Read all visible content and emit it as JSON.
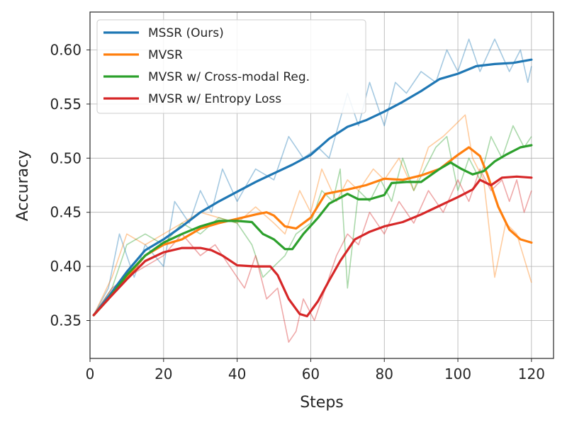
{
  "chart_data": {
    "type": "line",
    "title": "",
    "xlabel": "Steps",
    "ylabel": "Accuracy",
    "xlim": [
      0,
      126
    ],
    "ylim": [
      0.315,
      0.635
    ],
    "xticks": [
      0,
      20,
      40,
      60,
      80,
      100,
      120
    ],
    "yticks": [
      0.35,
      0.4,
      0.45,
      0.5,
      0.55,
      0.6
    ],
    "ytick_labels": [
      "0.35",
      "0.40",
      "0.45",
      "0.50",
      "0.55",
      "0.60"
    ],
    "grid": true,
    "legend_position": "upper-left",
    "series": [
      {
        "name": "MSSR (Ours)",
        "color": "#1f77b4",
        "smoothed": [
          [
            1,
            0.355
          ],
          [
            5,
            0.372
          ],
          [
            10,
            0.395
          ],
          [
            15,
            0.415
          ],
          [
            20,
            0.425
          ],
          [
            25,
            0.437
          ],
          [
            30,
            0.45
          ],
          [
            35,
            0.46
          ],
          [
            40,
            0.469
          ],
          [
            45,
            0.478
          ],
          [
            50,
            0.486
          ],
          [
            55,
            0.494
          ],
          [
            60,
            0.503
          ],
          [
            65,
            0.518
          ],
          [
            70,
            0.529
          ],
          [
            75,
            0.535
          ],
          [
            80,
            0.543
          ],
          [
            85,
            0.552
          ],
          [
            90,
            0.562
          ],
          [
            95,
            0.573
          ],
          [
            100,
            0.578
          ],
          [
            105,
            0.585
          ],
          [
            110,
            0.587
          ],
          [
            115,
            0.588
          ],
          [
            120,
            0.591
          ]
        ],
        "raw": [
          [
            1,
            0.355
          ],
          [
            5,
            0.38
          ],
          [
            8,
            0.43
          ],
          [
            12,
            0.39
          ],
          [
            15,
            0.42
          ],
          [
            20,
            0.4
          ],
          [
            23,
            0.46
          ],
          [
            27,
            0.44
          ],
          [
            30,
            0.47
          ],
          [
            33,
            0.45
          ],
          [
            36,
            0.49
          ],
          [
            40,
            0.46
          ],
          [
            45,
            0.49
          ],
          [
            50,
            0.48
          ],
          [
            54,
            0.52
          ],
          [
            58,
            0.5
          ],
          [
            62,
            0.51
          ],
          [
            65,
            0.5
          ],
          [
            70,
            0.56
          ],
          [
            73,
            0.53
          ],
          [
            76,
            0.57
          ],
          [
            80,
            0.53
          ],
          [
            83,
            0.57
          ],
          [
            86,
            0.56
          ],
          [
            90,
            0.58
          ],
          [
            94,
            0.57
          ],
          [
            97,
            0.6
          ],
          [
            100,
            0.58
          ],
          [
            103,
            0.61
          ],
          [
            106,
            0.58
          ],
          [
            110,
            0.61
          ],
          [
            114,
            0.58
          ],
          [
            117,
            0.6
          ],
          [
            119,
            0.57
          ],
          [
            120,
            0.585
          ]
        ]
      },
      {
        "name": "MVSR",
        "color": "#ff7f0e",
        "smoothed": [
          [
            1,
            0.355
          ],
          [
            5,
            0.37
          ],
          [
            10,
            0.39
          ],
          [
            15,
            0.41
          ],
          [
            20,
            0.42
          ],
          [
            25,
            0.425
          ],
          [
            30,
            0.435
          ],
          [
            35,
            0.44
          ],
          [
            40,
            0.444
          ],
          [
            45,
            0.448
          ],
          [
            48,
            0.45
          ],
          [
            50,
            0.447
          ],
          [
            53,
            0.437
          ],
          [
            56,
            0.435
          ],
          [
            60,
            0.445
          ],
          [
            64,
            0.467
          ],
          [
            70,
            0.471
          ],
          [
            75,
            0.475
          ],
          [
            80,
            0.481
          ],
          [
            85,
            0.48
          ],
          [
            90,
            0.484
          ],
          [
            95,
            0.49
          ],
          [
            100,
            0.503
          ],
          [
            103,
            0.51
          ],
          [
            106,
            0.502
          ],
          [
            108,
            0.485
          ],
          [
            111,
            0.455
          ],
          [
            114,
            0.434
          ],
          [
            117,
            0.425
          ],
          [
            120,
            0.422
          ]
        ],
        "raw": [
          [
            1,
            0.355
          ],
          [
            6,
            0.39
          ],
          [
            10,
            0.43
          ],
          [
            15,
            0.42
          ],
          [
            20,
            0.43
          ],
          [
            25,
            0.44
          ],
          [
            30,
            0.45
          ],
          [
            35,
            0.445
          ],
          [
            40,
            0.44
          ],
          [
            45,
            0.455
          ],
          [
            50,
            0.44
          ],
          [
            53,
            0.43
          ],
          [
            57,
            0.47
          ],
          [
            60,
            0.45
          ],
          [
            63,
            0.49
          ],
          [
            67,
            0.46
          ],
          [
            70,
            0.48
          ],
          [
            73,
            0.47
          ],
          [
            77,
            0.49
          ],
          [
            80,
            0.48
          ],
          [
            84,
            0.5
          ],
          [
            88,
            0.47
          ],
          [
            92,
            0.51
          ],
          [
            96,
            0.52
          ],
          [
            99,
            0.53
          ],
          [
            102,
            0.54
          ],
          [
            104,
            0.5
          ],
          [
            107,
            0.48
          ],
          [
            110,
            0.39
          ],
          [
            113,
            0.44
          ],
          [
            116,
            0.43
          ],
          [
            120,
            0.385
          ]
        ]
      },
      {
        "name": "MVSR w/ Cross-modal Reg.",
        "color": "#2ca02c",
        "smoothed": [
          [
            1,
            0.355
          ],
          [
            5,
            0.37
          ],
          [
            10,
            0.392
          ],
          [
            15,
            0.41
          ],
          [
            20,
            0.422
          ],
          [
            25,
            0.43
          ],
          [
            30,
            0.437
          ],
          [
            35,
            0.442
          ],
          [
            40,
            0.442
          ],
          [
            44,
            0.441
          ],
          [
            47,
            0.43
          ],
          [
            50,
            0.425
          ],
          [
            53,
            0.416
          ],
          [
            55,
            0.416
          ],
          [
            58,
            0.43
          ],
          [
            62,
            0.445
          ],
          [
            65,
            0.458
          ],
          [
            70,
            0.467
          ],
          [
            73,
            0.462
          ],
          [
            76,
            0.462
          ],
          [
            80,
            0.466
          ],
          [
            82,
            0.477
          ],
          [
            86,
            0.478
          ],
          [
            90,
            0.478
          ],
          [
            95,
            0.49
          ],
          [
            98,
            0.496
          ],
          [
            101,
            0.49
          ],
          [
            104,
            0.485
          ],
          [
            107,
            0.488
          ],
          [
            110,
            0.497
          ],
          [
            113,
            0.503
          ],
          [
            117,
            0.51
          ],
          [
            120,
            0.512
          ]
        ],
        "raw": [
          [
            1,
            0.355
          ],
          [
            6,
            0.38
          ],
          [
            10,
            0.42
          ],
          [
            15,
            0.43
          ],
          [
            20,
            0.42
          ],
          [
            25,
            0.44
          ],
          [
            30,
            0.43
          ],
          [
            35,
            0.445
          ],
          [
            40,
            0.44
          ],
          [
            44,
            0.42
          ],
          [
            47,
            0.39
          ],
          [
            50,
            0.4
          ],
          [
            53,
            0.41
          ],
          [
            56,
            0.43
          ],
          [
            60,
            0.44
          ],
          [
            63,
            0.47
          ],
          [
            66,
            0.46
          ],
          [
            68,
            0.49
          ],
          [
            70,
            0.38
          ],
          [
            73,
            0.47
          ],
          [
            76,
            0.46
          ],
          [
            79,
            0.48
          ],
          [
            82,
            0.46
          ],
          [
            85,
            0.5
          ],
          [
            88,
            0.47
          ],
          [
            91,
            0.49
          ],
          [
            94,
            0.51
          ],
          [
            97,
            0.52
          ],
          [
            100,
            0.47
          ],
          [
            103,
            0.5
          ],
          [
            106,
            0.48
          ],
          [
            109,
            0.52
          ],
          [
            112,
            0.5
          ],
          [
            115,
            0.53
          ],
          [
            118,
            0.51
          ],
          [
            120,
            0.52
          ]
        ]
      },
      {
        "name": "MVSR w/ Entropy Loss",
        "color": "#d62728",
        "smoothed": [
          [
            1,
            0.355
          ],
          [
            5,
            0.37
          ],
          [
            10,
            0.388
          ],
          [
            15,
            0.405
          ],
          [
            20,
            0.413
          ],
          [
            25,
            0.417
          ],
          [
            30,
            0.417
          ],
          [
            33,
            0.415
          ],
          [
            36,
            0.41
          ],
          [
            40,
            0.401
          ],
          [
            45,
            0.4
          ],
          [
            49,
            0.4
          ],
          [
            51,
            0.392
          ],
          [
            54,
            0.37
          ],
          [
            57,
            0.356
          ],
          [
            59,
            0.354
          ],
          [
            62,
            0.368
          ],
          [
            65,
            0.387
          ],
          [
            68,
            0.405
          ],
          [
            72,
            0.425
          ],
          [
            76,
            0.432
          ],
          [
            80,
            0.437
          ],
          [
            85,
            0.441
          ],
          [
            90,
            0.448
          ],
          [
            95,
            0.456
          ],
          [
            100,
            0.464
          ],
          [
            104,
            0.471
          ],
          [
            106,
            0.48
          ],
          [
            109,
            0.475
          ],
          [
            112,
            0.482
          ],
          [
            116,
            0.483
          ],
          [
            120,
            0.482
          ]
        ],
        "raw": [
          [
            1,
            0.355
          ],
          [
            6,
            0.38
          ],
          [
            10,
            0.39
          ],
          [
            15,
            0.4
          ],
          [
            20,
            0.41
          ],
          [
            25,
            0.43
          ],
          [
            30,
            0.41
          ],
          [
            34,
            0.42
          ],
          [
            38,
            0.4
          ],
          [
            42,
            0.38
          ],
          [
            45,
            0.41
          ],
          [
            48,
            0.37
          ],
          [
            51,
            0.38
          ],
          [
            54,
            0.33
          ],
          [
            56,
            0.34
          ],
          [
            58,
            0.37
          ],
          [
            61,
            0.35
          ],
          [
            64,
            0.38
          ],
          [
            67,
            0.41
          ],
          [
            70,
            0.43
          ],
          [
            73,
            0.42
          ],
          [
            76,
            0.45
          ],
          [
            80,
            0.43
          ],
          [
            84,
            0.46
          ],
          [
            88,
            0.44
          ],
          [
            92,
            0.47
          ],
          [
            96,
            0.45
          ],
          [
            100,
            0.48
          ],
          [
            103,
            0.46
          ],
          [
            106,
            0.49
          ],
          [
            109,
            0.47
          ],
          [
            112,
            0.48
          ],
          [
            114,
            0.46
          ],
          [
            116,
            0.48
          ],
          [
            118,
            0.45
          ],
          [
            120,
            0.47
          ]
        ]
      }
    ]
  }
}
